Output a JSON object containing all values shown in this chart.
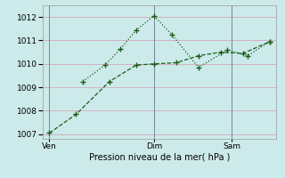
{
  "xlabel": "Pression niveau de la mer( hPa )",
  "bg_color": "#cceaea",
  "grid_color": "#d4a8b8",
  "line_color": "#1a5c1a",
  "vline_color": "#778899",
  "ylim": [
    1006.8,
    1012.5
  ],
  "xlim": [
    0,
    10.5
  ],
  "yticks": [
    1007,
    1008,
    1009,
    1010,
    1011,
    1012
  ],
  "xtick_positions": [
    0.3,
    5.0,
    8.5
  ],
  "xtick_labels": [
    "Ven",
    "Dim",
    "Sam"
  ],
  "line1_x": [
    0.3,
    1.5,
    3.0,
    4.2,
    5.0,
    6.0,
    7.0,
    8.0,
    9.0,
    10.2
  ],
  "line1_y": [
    1007.05,
    1007.85,
    1009.25,
    1009.95,
    1010.0,
    1010.05,
    1010.35,
    1010.5,
    1010.45,
    1010.95
  ],
  "line2_x": [
    1.8,
    2.8,
    3.5,
    4.2,
    5.0,
    5.8,
    7.0,
    8.3,
    9.2,
    10.2
  ],
  "line2_y": [
    1009.25,
    1009.95,
    1010.65,
    1011.45,
    1012.05,
    1011.25,
    1009.85,
    1010.6,
    1010.35,
    1010.95
  ]
}
